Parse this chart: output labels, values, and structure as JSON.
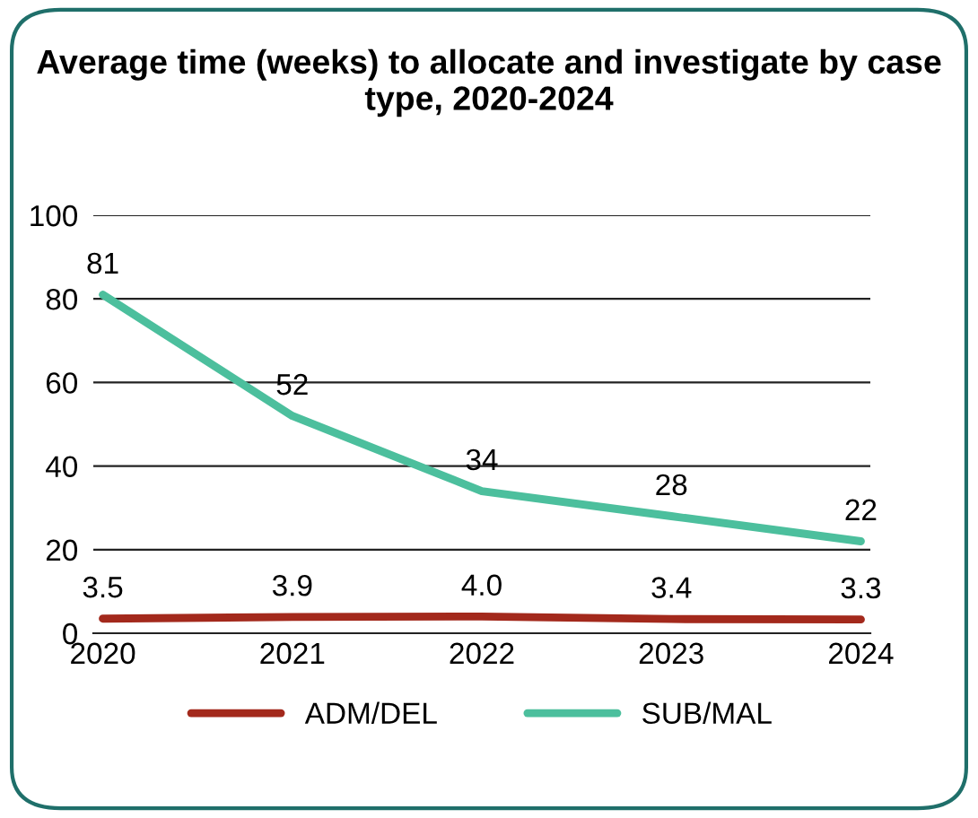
{
  "chart_data": {
    "type": "line",
    "title": "Average time (weeks) to allocate and investigate by case type, 2020-2024",
    "categories": [
      "2020",
      "2021",
      "2022",
      "2023",
      "2024"
    ],
    "series": [
      {
        "name": "ADM/DEL",
        "color": "#a3291c",
        "values": [
          3.5,
          3.9,
          4.0,
          3.4,
          3.3
        ],
        "value_labels": [
          "3.5",
          "3.9",
          "4.0",
          "3.4",
          "3.3"
        ]
      },
      {
        "name": "SUB/MAL",
        "color": "#4cbf9d",
        "values": [
          81,
          52,
          34,
          28,
          22
        ],
        "value_labels": [
          "81",
          "52",
          "34",
          "28",
          "22"
        ]
      }
    ],
    "ylim": [
      0,
      100
    ],
    "yticks": [
      0,
      20,
      40,
      60,
      80,
      100
    ],
    "grid": "y",
    "legend": "bottom",
    "marker": "none",
    "line_style": "solid"
  }
}
